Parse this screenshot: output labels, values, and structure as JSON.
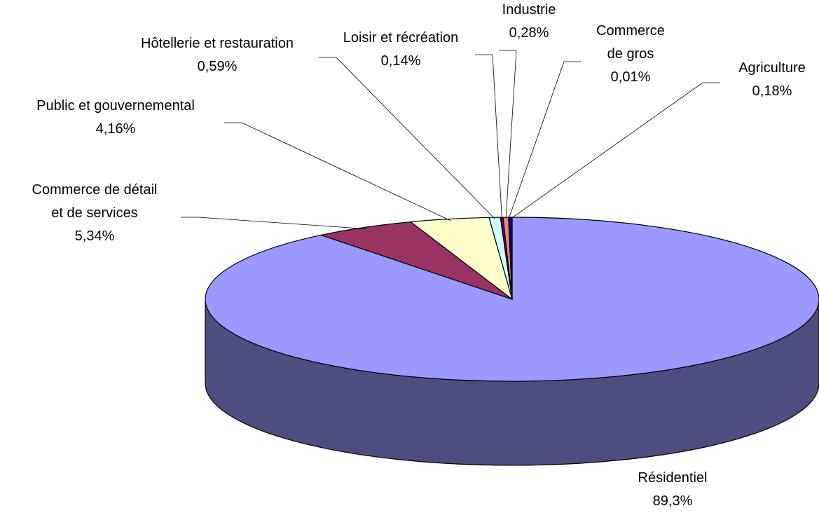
{
  "chart_data": {
    "type": "pie3d",
    "categories": [
      "Résidentiel",
      "Commerce de détail\net de services",
      "Public et gouvernemental",
      "Hôtellerie et restauration",
      "Loisir et récréation",
      "Industrie",
      "Commerce\nde gros",
      "Agriculture"
    ],
    "values": [
      89.3,
      5.34,
      4.16,
      0.59,
      0.14,
      0.28,
      0.01,
      0.18
    ],
    "value_labels": [
      "89,3%",
      "5,34%",
      "4,16%",
      "0,59%",
      "0,14%",
      "0,28%",
      "0,01%",
      "0,18%"
    ],
    "colors": [
      "#9999ff",
      "#993366",
      "#ffffcc",
      "#ccffff",
      "#660066",
      "#ff8080",
      "#0066cc",
      "#000080"
    ]
  }
}
